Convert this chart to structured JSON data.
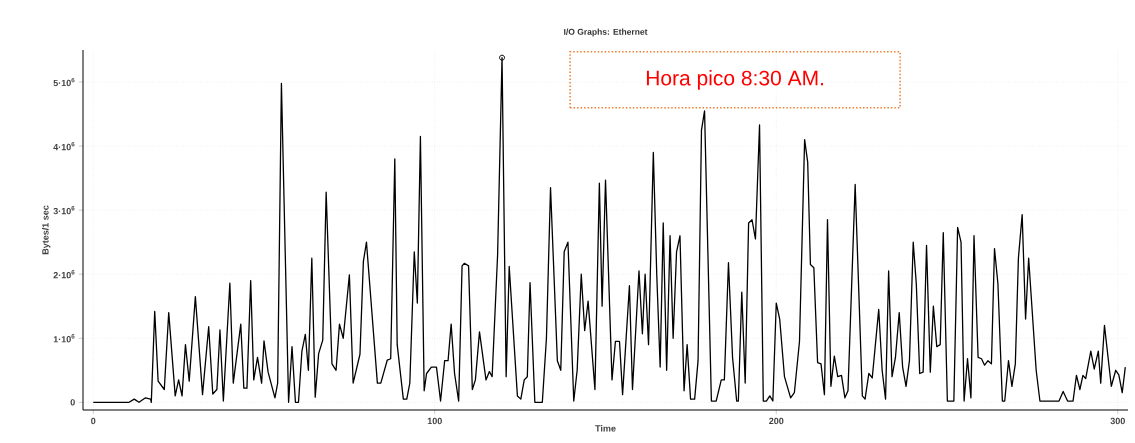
{
  "chart_data": {
    "type": "line",
    "title": "I/O Graphs: Ethernet",
    "xlabel": "Time",
    "ylabel": "Bytes/1 sec",
    "annotations": [
      "Hora pico 8:30 AM."
    ],
    "xlim": [
      -3,
      303
    ],
    "ylim": [
      -120000,
      5500000
    ],
    "xticks": [
      0,
      100,
      200,
      300
    ],
    "yticks": [
      0,
      {
        "value": 1000000,
        "label": "1·10$^{6}$"
      },
      {
        "value": 2000000,
        "label": "2·10$^{6}$"
      },
      {
        "value": 3000000,
        "label": "3·10$^{6}$"
      },
      {
        "value": 4000000,
        "label": "4·10$^{6}$"
      },
      {
        "value": 5000000,
        "label": "5·10$^{6}$"
      }
    ],
    "grid": true,
    "series": [
      {
        "color": "#000000",
        "marker": "none",
        "x": [
          0,
          10.5,
          12,
          13.4,
          15.3,
          16.8,
          17,
          18,
          19,
          20.8,
          22.1,
          24,
          25,
          26,
          27,
          28.1,
          29.9,
          32,
          33.8,
          35,
          36.2,
          37.1,
          38.1,
          40,
          41,
          43.2,
          44.1,
          45,
          46.1,
          47,
          48.1,
          49.3,
          50,
          51.2,
          53.2,
          54,
          55.1,
          57.2,
          58.2,
          59.2,
          60.1,
          61.1,
          62.1,
          63,
          64,
          65,
          66,
          67.2,
          68.2,
          69.9,
          71.1,
          72.1,
          73.2,
          75,
          76.1,
          78.1,
          79.1,
          80,
          83.2,
          84.2,
          86.1,
          87.1,
          88.3,
          89,
          90.8,
          91.8,
          92.7,
          94,
          94.9,
          95.8,
          96.9,
          97.6,
          99,
          100.5,
          101.7,
          102.9,
          103.9,
          104.8,
          105.8,
          107,
          108,
          108.7,
          109.9,
          111,
          111.9,
          113.1,
          115,
          116,
          116.8,
          118.4,
          119.7,
          120.9,
          121.8,
          124.2,
          125.2,
          126.2,
          127.1,
          127.9,
          129.3,
          131.5,
          132.7,
          133.9,
          135.9,
          136.9,
          137.9,
          139,
          140.7,
          141.7,
          142.9,
          143.9,
          144.9,
          146.9,
          148.2,
          149,
          150,
          151.9,
          152.9,
          154.1,
          155,
          157,
          157.9,
          159.8,
          160.8,
          161.6,
          162.6,
          164,
          165,
          166,
          166.9,
          167.9,
          168.9,
          169.8,
          170.8,
          171.8,
          173,
          173.9,
          174.9,
          176.1,
          177.1,
          178.1,
          179,
          181,
          182.4,
          183.9,
          184.8,
          186,
          187.2,
          188.4,
          188.9,
          189.9,
          190.9,
          191.9,
          192.9,
          193.9,
          195.1,
          196.2,
          197.1,
          198.1,
          199,
          200,
          201,
          202.4,
          204.2,
          205.3,
          206.8,
          208.3,
          209.2,
          210,
          211,
          212.1,
          213.1,
          214.1,
          215,
          216,
          217,
          218,
          219.1,
          220.1,
          221,
          223.1,
          225.2,
          226,
          227.1,
          228.1,
          230,
          231,
          232,
          232.9,
          233.9,
          234.9,
          236,
          237,
          238,
          239,
          240.1,
          241,
          242,
          243,
          244,
          245.1,
          246,
          247,
          248,
          248.9,
          250.1,
          251.1,
          252,
          253.1,
          254.1,
          255,
          256,
          257,
          257.9,
          259.1,
          260.1,
          261,
          262,
          263,
          263.9,
          264.9,
          266.2,
          266.9,
          268,
          269,
          270,
          270.9,
          272,
          273,
          273.9,
          276.1,
          277.2,
          282.8,
          284,
          285.3,
          286.9,
          287.9,
          288.9,
          289.8,
          290.6,
          292.1,
          293.1,
          294.3,
          295,
          296.1,
          298.1,
          299.4,
          300.3,
          301.3,
          302.2
        ],
        "values": [
          0,
          0,
          50000,
          0,
          70000,
          50000,
          0,
          1420000,
          330000,
          200000,
          1400000,
          100000,
          350000,
          100000,
          900000,
          330000,
          1650000,
          120000,
          1180000,
          130000,
          200000,
          1130000,
          20000,
          1860000,
          300000,
          1220000,
          220000,
          220000,
          1900000,
          350000,
          700000,
          300000,
          960000,
          470000,
          70000,
          300000,
          4980000,
          0,
          870000,
          0,
          0,
          800000,
          1060000,
          500000,
          2250000,
          80000,
          760000,
          970000,
          3280000,
          600000,
          500000,
          1220000,
          1000000,
          1990000,
          300000,
          750000,
          2200000,
          2500000,
          300000,
          300000,
          660000,
          680000,
          3800000,
          900000,
          50000,
          50000,
          300000,
          2350000,
          1550000,
          4150000,
          180000,
          450000,
          550000,
          550000,
          20000,
          650000,
          650000,
          1220000,
          450000,
          20000,
          2130000,
          2170000,
          2130000,
          200000,
          350000,
          1100000,
          350000,
          480000,
          400000,
          2300000,
          5380000,
          400000,
          2120000,
          100000,
          50000,
          350000,
          400000,
          1870000,
          0,
          0,
          1000000,
          3350000,
          650000,
          500000,
          2350000,
          2500000,
          20000,
          500000,
          2000000,
          1120000,
          1580000,
          200000,
          3420000,
          1500000,
          3470000,
          350000,
          950000,
          950000,
          120000,
          1820000,
          200000,
          2050000,
          1070000,
          2000000,
          900000,
          3900000,
          2000000,
          550000,
          2800000,
          500000,
          2600000,
          1000000,
          2350000,
          2600000,
          180000,
          900000,
          50000,
          50000,
          650000,
          4250000,
          4550000,
          20000,
          20000,
          350000,
          350000,
          2180000,
          700000,
          20000,
          20000,
          1720000,
          300000,
          2800000,
          2850000,
          2550000,
          4330000,
          20000,
          20000,
          100000,
          20000,
          1550000,
          1300000,
          400000,
          70000,
          150000,
          950000,
          4100000,
          3750000,
          2150000,
          2100000,
          620000,
          600000,
          120000,
          2850000,
          250000,
          720000,
          400000,
          420000,
          70000,
          180000,
          3400000,
          100000,
          50000,
          450000,
          380000,
          1450000,
          500000,
          50000,
          2050000,
          400000,
          700000,
          1400000,
          550000,
          250000,
          650000,
          2500000,
          1850000,
          450000,
          470000,
          2450000,
          470000,
          1500000,
          870000,
          900000,
          2650000,
          20000,
          20000,
          20000,
          2730000,
          2500000,
          20000,
          680000,
          70000,
          2600000,
          700000,
          680000,
          580000,
          650000,
          600000,
          2400000,
          1850000,
          20000,
          20000,
          650000,
          250000,
          600000,
          2250000,
          2930000,
          1300000,
          2250000,
          500000,
          20000,
          20000,
          170000,
          20000,
          20000,
          420000,
          200000,
          420000,
          370000,
          800000,
          520000,
          800000,
          300000,
          1200000,
          250000,
          500000,
          430000,
          150000,
          550000
        ]
      },
      {
        "type": "scatter",
        "color": "#000000",
        "marker": "circle",
        "x": [
          119.7
        ],
        "values": [
          5380000
        ]
      }
    ]
  }
}
